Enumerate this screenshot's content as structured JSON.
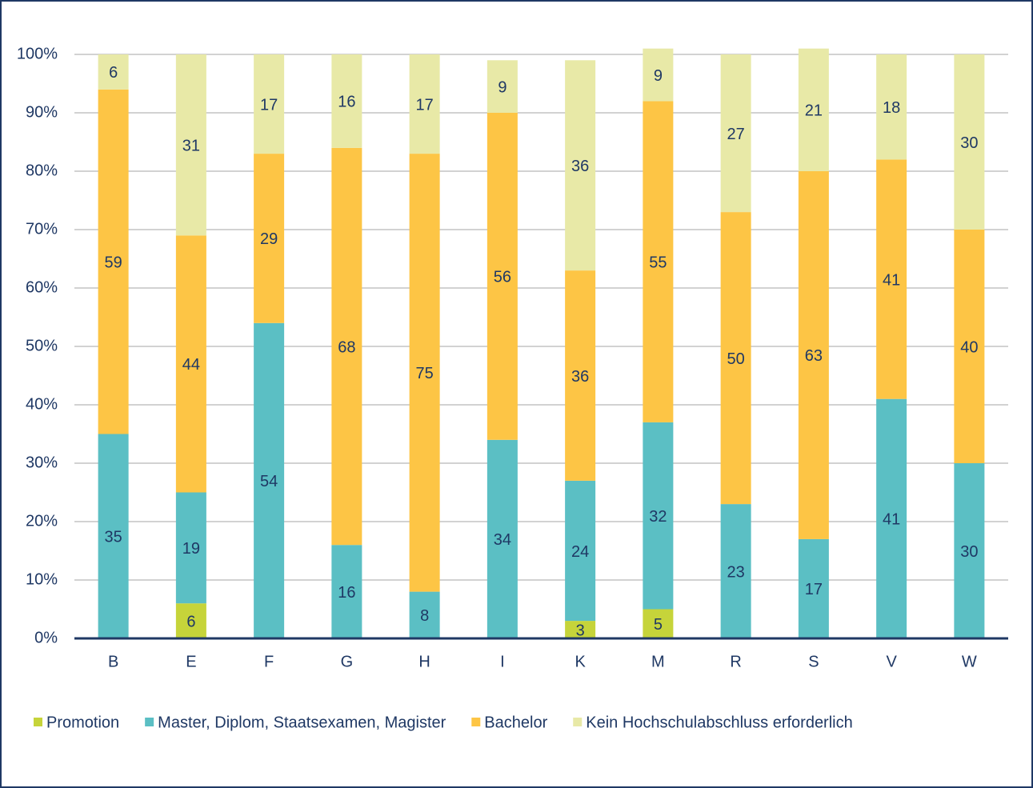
{
  "chart_data": {
    "type": "stacked_bar",
    "categories": [
      "B",
      "E",
      "F",
      "G",
      "H",
      "I",
      "K",
      "M",
      "R",
      "S",
      "V",
      "W"
    ],
    "series": [
      {
        "name": "Promotion",
        "color": "#c6d43a",
        "values": [
          null,
          6,
          null,
          null,
          null,
          null,
          3,
          5,
          null,
          null,
          null,
          null
        ]
      },
      {
        "name": "Master, Diplom, Staatsexamen, Magister",
        "color": "#5bbfc4",
        "values": [
          35,
          19,
          54,
          16,
          8,
          34,
          24,
          32,
          23,
          17,
          41,
          30
        ]
      },
      {
        "name": "Bachelor",
        "color": "#fdc545",
        "values": [
          59,
          44,
          29,
          68,
          75,
          56,
          36,
          55,
          50,
          63,
          41,
          40
        ]
      },
      {
        "name": "Kein Hochschulabschluss erforderlich",
        "color": "#e8e9a7",
        "values": [
          6,
          31,
          17,
          16,
          17,
          9,
          36,
          9,
          27,
          21,
          18,
          30
        ]
      }
    ],
    "ylim": [
      0,
      100
    ],
    "yticks": [
      {
        "value": 0,
        "label": "0%"
      },
      {
        "value": 10,
        "label": "10%"
      },
      {
        "value": 20,
        "label": "20%"
      },
      {
        "value": 30,
        "label": "30%"
      },
      {
        "value": 40,
        "label": "40%"
      },
      {
        "value": 50,
        "label": "50%"
      },
      {
        "value": 60,
        "label": "60%"
      },
      {
        "value": 70,
        "label": "70%"
      },
      {
        "value": 80,
        "label": "80%"
      },
      {
        "value": 90,
        "label": "90%"
      },
      {
        "value": 100,
        "label": "100%"
      }
    ],
    "grid": true,
    "legend": "bottom"
  }
}
